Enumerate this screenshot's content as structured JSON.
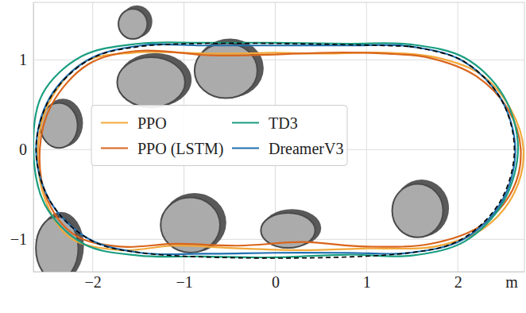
{
  "chart_data": {
    "type": "line",
    "xlabel": "m",
    "xlim": [
      -2.65,
      2.73
    ],
    "ylim": [
      -1.36,
      1.64
    ],
    "xticks": [
      {
        "value": -2,
        "label": "−2"
      },
      {
        "value": -1,
        "label": "−1"
      },
      0,
      1,
      2
    ],
    "yticks": [
      {
        "value": -1,
        "label": "−1"
      },
      0,
      1
    ],
    "grid": true,
    "legend": "center",
    "reference": {
      "color": "#000000",
      "line_style": "dashed",
      "x": [
        1.47,
        2.045,
        2.466,
        2.62,
        2.466,
        2.045,
        1.47,
        -1.47,
        -2.045,
        -2.466,
        -2.62,
        -2.466,
        -2.045,
        -1.47,
        1.47
      ],
      "y": [
        1.15,
        0.996,
        0.575,
        0.0,
        -0.575,
        -0.996,
        -1.15,
        -1.15,
        -0.996,
        -0.575,
        0.0,
        0.575,
        0.996,
        1.15,
        1.15
      ]
    },
    "obstacles": [
      {
        "x": -1.56,
        "y": 1.4,
        "rx": 0.17,
        "ry": 0.18
      },
      {
        "x": -1.36,
        "y": 0.75,
        "rx": 0.4,
        "ry": 0.3
      },
      {
        "x": -0.54,
        "y": 0.88,
        "rx": 0.37,
        "ry": 0.33
      },
      {
        "x": -2.37,
        "y": 0.27,
        "rx": 0.22,
        "ry": 0.27
      },
      {
        "x": -2.39,
        "y": -1.1,
        "rx": 0.25,
        "ry": 0.38
      },
      {
        "x": -0.93,
        "y": -0.84,
        "rx": 0.35,
        "ry": 0.33
      },
      {
        "x": 0.14,
        "y": -0.9,
        "rx": 0.32,
        "ry": 0.21
      },
      {
        "x": 1.56,
        "y": -0.68,
        "rx": 0.3,
        "ry": 0.32
      }
    ],
    "series": [
      {
        "name": "PPO",
        "color": "#f2a93b",
        "x": [
          0,
          0.6,
          1.2,
          1.75,
          2.25,
          2.58,
          2.72,
          2.62,
          2.28,
          1.75,
          1.0,
          0.3,
          -0.4,
          -1.1,
          -1.7,
          -2.25,
          -2.52,
          -2.6,
          -2.48,
          -2.1,
          -1.55,
          -0.7,
          0
        ],
        "y": [
          1.08,
          1.07,
          1.08,
          1.03,
          0.84,
          0.45,
          0.0,
          -0.48,
          -0.88,
          -1.08,
          -1.1,
          -1.12,
          -1.1,
          -1.07,
          -1.12,
          -0.98,
          -0.56,
          0.0,
          0.52,
          0.97,
          1.08,
          1.07,
          1.08
        ]
      },
      {
        "name": "PPO (LSTM)",
        "color": "#d9651c",
        "x": [
          0,
          0.6,
          1.2,
          1.7,
          2.2,
          2.55,
          2.69,
          2.6,
          2.25,
          1.7,
          1.0,
          0.3,
          -0.4,
          -1.1,
          -1.7,
          -2.2,
          -2.5,
          -2.58,
          -2.45,
          -2.05,
          -1.5,
          -0.7,
          0
        ],
        "y": [
          1.06,
          1.08,
          1.07,
          1.02,
          0.82,
          0.45,
          0.0,
          -0.45,
          -0.85,
          -1.05,
          -1.08,
          -1.03,
          -1.07,
          -1.05,
          -1.08,
          -0.95,
          -0.55,
          0.0,
          0.5,
          0.95,
          1.1,
          1.05,
          1.06
        ]
      },
      {
        "name": "TD3",
        "color": "#1a9e80",
        "x": [
          0,
          0.8,
          1.5,
          2.08,
          2.5,
          2.66,
          2.5,
          2.08,
          1.5,
          0.8,
          0,
          -0.8,
          -1.5,
          -2.1,
          -2.52,
          -2.65,
          -2.55,
          -2.12,
          -1.5,
          -0.8,
          0
        ],
        "y": [
          1.19,
          1.18,
          1.17,
          1.02,
          0.6,
          0.02,
          -0.58,
          -1.02,
          -1.18,
          -1.17,
          -1.2,
          -1.19,
          -1.18,
          -1.05,
          -0.62,
          0.0,
          0.62,
          1.04,
          1.18,
          1.19,
          1.19
        ]
      },
      {
        "name": "DreamerV3",
        "color": "#1f6fb0",
        "x": [
          0,
          0.8,
          1.47,
          2.05,
          2.47,
          2.63,
          2.48,
          2.06,
          1.47,
          0.8,
          0,
          -0.8,
          -1.47,
          -2.05,
          -2.47,
          -2.62,
          -2.47,
          -2.05,
          -1.47,
          -0.8,
          0
        ],
        "y": [
          1.16,
          1.16,
          1.15,
          0.99,
          0.57,
          0.0,
          -0.58,
          -1.0,
          -1.15,
          -1.15,
          -1.15,
          -1.16,
          -1.15,
          -0.99,
          -0.57,
          0.0,
          0.58,
          1.0,
          1.16,
          1.16,
          1.16
        ]
      }
    ]
  }
}
